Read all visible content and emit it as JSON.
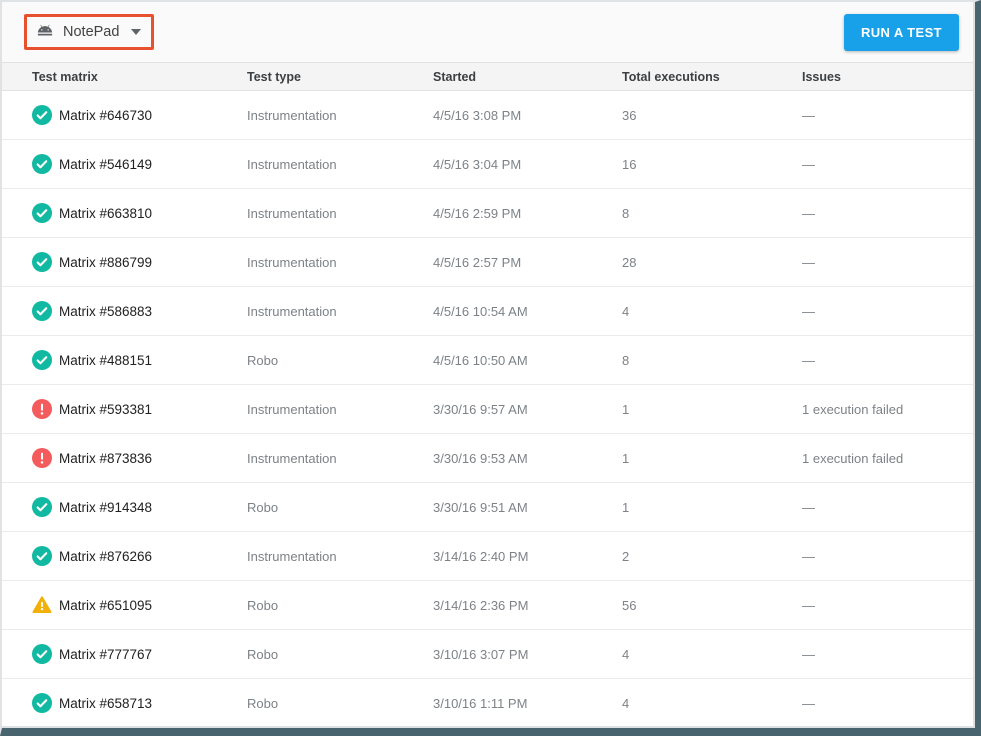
{
  "app_bar": {
    "app_selector": {
      "label": "NotePad",
      "icon": "android-icon",
      "highlight_color": "#E8512D"
    },
    "run_test_button": {
      "label": "RUN A TEST",
      "color": "#18A0E8"
    }
  },
  "table": {
    "columns": [
      "Test matrix",
      "Test type",
      "Started",
      "Total executions",
      "Issues"
    ],
    "rows": [
      {
        "status": "passed",
        "matrix": "Matrix #646730",
        "test_type": "Instrumentation",
        "started": "4/5/16 3:08 PM",
        "total_executions": "36",
        "issues": "—"
      },
      {
        "status": "passed",
        "matrix": "Matrix #546149",
        "test_type": "Instrumentation",
        "started": "4/5/16 3:04 PM",
        "total_executions": "16",
        "issues": "—"
      },
      {
        "status": "passed",
        "matrix": "Matrix #663810",
        "test_type": "Instrumentation",
        "started": "4/5/16 2:59 PM",
        "total_executions": "8",
        "issues": "—"
      },
      {
        "status": "passed",
        "matrix": "Matrix #886799",
        "test_type": "Instrumentation",
        "started": "4/5/16 2:57 PM",
        "total_executions": "28",
        "issues": "—"
      },
      {
        "status": "passed",
        "matrix": "Matrix #586883",
        "test_type": "Instrumentation",
        "started": "4/5/16 10:54 AM",
        "total_executions": "4",
        "issues": "—"
      },
      {
        "status": "passed",
        "matrix": "Matrix #488151",
        "test_type": "Robo",
        "started": "4/5/16 10:50 AM",
        "total_executions": "8",
        "issues": "—"
      },
      {
        "status": "failed",
        "matrix": "Matrix #593381",
        "test_type": "Instrumentation",
        "started": "3/30/16 9:57 AM",
        "total_executions": "1",
        "issues": "1 execution failed"
      },
      {
        "status": "failed",
        "matrix": "Matrix #873836",
        "test_type": "Instrumentation",
        "started": "3/30/16 9:53 AM",
        "total_executions": "1",
        "issues": "1 execution failed"
      },
      {
        "status": "passed",
        "matrix": "Matrix #914348",
        "test_type": "Robo",
        "started": "3/30/16 9:51 AM",
        "total_executions": "1",
        "issues": "—"
      },
      {
        "status": "passed",
        "matrix": "Matrix #876266",
        "test_type": "Instrumentation",
        "started": "3/14/16 2:40 PM",
        "total_executions": "2",
        "issues": "—"
      },
      {
        "status": "warning",
        "matrix": "Matrix #651095",
        "test_type": "Robo",
        "started": "3/14/16 2:36 PM",
        "total_executions": "56",
        "issues": "—"
      },
      {
        "status": "passed",
        "matrix": "Matrix #777767",
        "test_type": "Robo",
        "started": "3/10/16 3:07 PM",
        "total_executions": "4",
        "issues": "—"
      },
      {
        "status": "passed",
        "matrix": "Matrix #658713",
        "test_type": "Robo",
        "started": "3/10/16 1:11 PM",
        "total_executions": "4",
        "issues": "—"
      }
    ]
  },
  "status_colors": {
    "passed": "#12B9A2",
    "failed": "#F45B5C",
    "warning": "#F2B10A"
  }
}
